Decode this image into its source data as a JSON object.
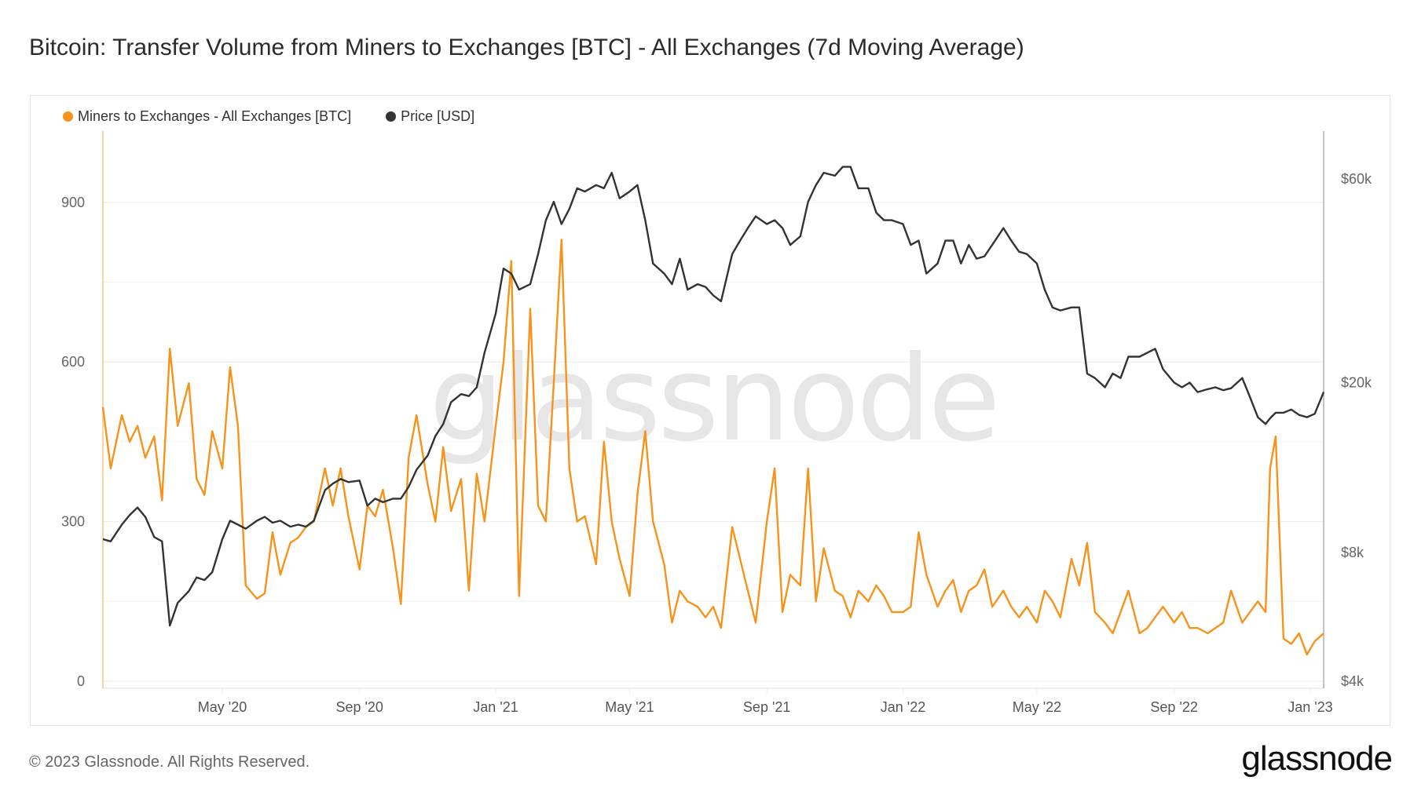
{
  "title": "Bitcoin: Transfer Volume from Miners to Exchanges [BTC] - All Exchanges (7d Moving Average)",
  "footer": {
    "copyright": "© 2023 Glassnode. All Rights Reserved.",
    "logo": "glassnode"
  },
  "watermark": "glassnode",
  "chart_data": {
    "type": "line",
    "title": "Bitcoin: Transfer Volume from Miners to Exchanges [BTC] - All Exchanges (7d Moving Average)",
    "grid": true,
    "legend_placement": "top-left",
    "x_ticks": [
      {
        "date": "2020-05-01",
        "label": "May '20"
      },
      {
        "date": "2020-09-01",
        "label": "Sep '20"
      },
      {
        "date": "2021-01-01",
        "label": "Jan '21"
      },
      {
        "date": "2021-05-01",
        "label": "May '21"
      },
      {
        "date": "2021-09-01",
        "label": "Sep '21"
      },
      {
        "date": "2022-01-01",
        "label": "Jan '22"
      },
      {
        "date": "2022-05-01",
        "label": "May '22"
      },
      {
        "date": "2022-09-01",
        "label": "Sep '22"
      },
      {
        "date": "2023-01-01",
        "label": "Jan '23"
      }
    ],
    "xlim": [
      "2020-01-15",
      "2023-01-13"
    ],
    "y_left": {
      "scale": "linear",
      "ylim": [
        0,
        1034
      ],
      "ticks": [
        {
          "v": 0,
          "label": "0"
        },
        {
          "v": 300,
          "label": "300"
        },
        {
          "v": 600,
          "label": "600"
        },
        {
          "v": 900,
          "label": "900"
        }
      ]
    },
    "y_right": {
      "scale": "log",
      "ylim": [
        4000,
        77600
      ],
      "ticks": [
        {
          "v": 4000,
          "label": "$4k"
        },
        {
          "v": 8000,
          "label": "$8k"
        },
        {
          "v": 20000,
          "label": "$20k"
        },
        {
          "v": 60000,
          "label": "$60k"
        }
      ]
    },
    "x": [
      "2020-01-15",
      "2020-01-22",
      "2020-02-01",
      "2020-02-08",
      "2020-02-15",
      "2020-02-22",
      "2020-03-01",
      "2020-03-08",
      "2020-03-15",
      "2020-03-22",
      "2020-04-01",
      "2020-04-08",
      "2020-04-15",
      "2020-04-22",
      "2020-05-01",
      "2020-05-08",
      "2020-05-15",
      "2020-05-22",
      "2020-06-01",
      "2020-06-08",
      "2020-06-15",
      "2020-06-22",
      "2020-07-01",
      "2020-07-08",
      "2020-07-15",
      "2020-07-22",
      "2020-08-01",
      "2020-08-08",
      "2020-08-15",
      "2020-08-22",
      "2020-09-01",
      "2020-09-08",
      "2020-09-15",
      "2020-09-22",
      "2020-10-01",
      "2020-10-08",
      "2020-10-15",
      "2020-10-22",
      "2020-11-01",
      "2020-11-08",
      "2020-11-15",
      "2020-11-22",
      "2020-12-01",
      "2020-12-08",
      "2020-12-15",
      "2020-12-22",
      "2021-01-01",
      "2021-01-08",
      "2021-01-15",
      "2021-01-22",
      "2021-02-01",
      "2021-02-08",
      "2021-02-15",
      "2021-02-22",
      "2021-03-01",
      "2021-03-08",
      "2021-03-15",
      "2021-03-22",
      "2021-04-01",
      "2021-04-08",
      "2021-04-15",
      "2021-04-22",
      "2021-05-01",
      "2021-05-08",
      "2021-05-15",
      "2021-05-22",
      "2021-06-01",
      "2021-06-08",
      "2021-06-15",
      "2021-06-22",
      "2021-07-01",
      "2021-07-08",
      "2021-07-15",
      "2021-07-22",
      "2021-08-01",
      "2021-08-08",
      "2021-08-15",
      "2021-08-22",
      "2021-09-01",
      "2021-09-08",
      "2021-09-15",
      "2021-09-22",
      "2021-10-01",
      "2021-10-08",
      "2021-10-15",
      "2021-10-22",
      "2021-11-01",
      "2021-11-08",
      "2021-11-15",
      "2021-11-22",
      "2021-12-01",
      "2021-12-08",
      "2021-12-15",
      "2021-12-22",
      "2022-01-01",
      "2022-01-08",
      "2022-01-15",
      "2022-01-22",
      "2022-02-01",
      "2022-02-08",
      "2022-02-15",
      "2022-02-22",
      "2022-03-01",
      "2022-03-08",
      "2022-03-15",
      "2022-03-22",
      "2022-04-01",
      "2022-04-08",
      "2022-04-15",
      "2022-04-22",
      "2022-05-01",
      "2022-05-08",
      "2022-05-15",
      "2022-05-22",
      "2022-06-01",
      "2022-06-08",
      "2022-06-15",
      "2022-06-22",
      "2022-07-01",
      "2022-07-08",
      "2022-07-15",
      "2022-07-22",
      "2022-08-01",
      "2022-08-08",
      "2022-08-15",
      "2022-08-22",
      "2022-09-01",
      "2022-09-08",
      "2022-09-15",
      "2022-09-22",
      "2022-10-01",
      "2022-10-08",
      "2022-10-15",
      "2022-10-22",
      "2022-11-01",
      "2022-11-08",
      "2022-11-15",
      "2022-11-22",
      "2022-11-26",
      "2022-12-01",
      "2022-12-08",
      "2022-12-15",
      "2022-12-22",
      "2022-12-29",
      "2023-01-05",
      "2023-01-13"
    ],
    "series": [
      {
        "name": "Miners to Exchanges - All Exchanges [BTC]",
        "axis": "left",
        "color": "#f7931a",
        "values": [
          515,
          400,
          500,
          450,
          480,
          420,
          460,
          340,
          625,
          480,
          560,
          380,
          350,
          470,
          400,
          590,
          480,
          180,
          155,
          165,
          280,
          200,
          260,
          270,
          290,
          300,
          400,
          330,
          400,
          310,
          210,
          330,
          310,
          360,
          250,
          145,
          420,
          500,
          370,
          300,
          440,
          320,
          380,
          170,
          390,
          300,
          480,
          600,
          790,
          160,
          700,
          330,
          300,
          560,
          830,
          400,
          300,
          310,
          220,
          450,
          300,
          230,
          160,
          350,
          470,
          300,
          220,
          110,
          170,
          150,
          140,
          120,
          140,
          100,
          290,
          230,
          170,
          110,
          300,
          400,
          130,
          200,
          180,
          400,
          150,
          250,
          170,
          160,
          120,
          170,
          150,
          180,
          160,
          130,
          130,
          140,
          280,
          200,
          140,
          170,
          190,
          130,
          170,
          180,
          210,
          140,
          170,
          140,
          120,
          140,
          110,
          170,
          150,
          120,
          230,
          180,
          260,
          130,
          110,
          90,
          130,
          170,
          90,
          100,
          120,
          140,
          110,
          130,
          100,
          100,
          90,
          100,
          110,
          170,
          110,
          130,
          150,
          130,
          400,
          460,
          80,
          70,
          90,
          50,
          75,
          90
        ]
      },
      {
        "name": "Price [USD]",
        "axis": "right",
        "color": "#333333",
        "values": [
          8600,
          8500,
          9300,
          9800,
          10200,
          9700,
          8700,
          8500,
          5400,
          6100,
          6500,
          7000,
          6900,
          7200,
          8600,
          9500,
          9300,
          9100,
          9500,
          9700,
          9400,
          9500,
          9200,
          9300,
          9200,
          9500,
          11200,
          11600,
          11900,
          11700,
          11800,
          10300,
          10700,
          10500,
          10700,
          10700,
          11400,
          12500,
          13500,
          15000,
          16000,
          18000,
          18800,
          18600,
          19500,
          23500,
          29000,
          37000,
          36000,
          33000,
          34000,
          40000,
          48000,
          53000,
          47000,
          51000,
          57000,
          56000,
          58000,
          57000,
          62000,
          54000,
          56000,
          58000,
          48000,
          38000,
          36000,
          34000,
          39000,
          33000,
          34000,
          33500,
          32000,
          31000,
          40000,
          43000,
          46000,
          49000,
          47000,
          48000,
          46000,
          42000,
          44000,
          53000,
          58000,
          62000,
          61000,
          64000,
          64000,
          57000,
          57000,
          50000,
          48000,
          48000,
          47000,
          42000,
          43000,
          36000,
          38000,
          43000,
          43000,
          38000,
          42000,
          39000,
          39500,
          42000,
          46000,
          43000,
          40500,
          40000,
          38000,
          33000,
          30000,
          29500,
          30000,
          30000,
          21000,
          20500,
          19500,
          21000,
          20500,
          23000,
          23000,
          23500,
          24000,
          21500,
          20000,
          19500,
          20000,
          19000,
          19300,
          19500,
          19200,
          19400,
          20500,
          18500,
          16600,
          16000,
          16500,
          17000,
          17000,
          17300,
          16800,
          16600,
          16900,
          19000
        ]
      }
    ]
  }
}
